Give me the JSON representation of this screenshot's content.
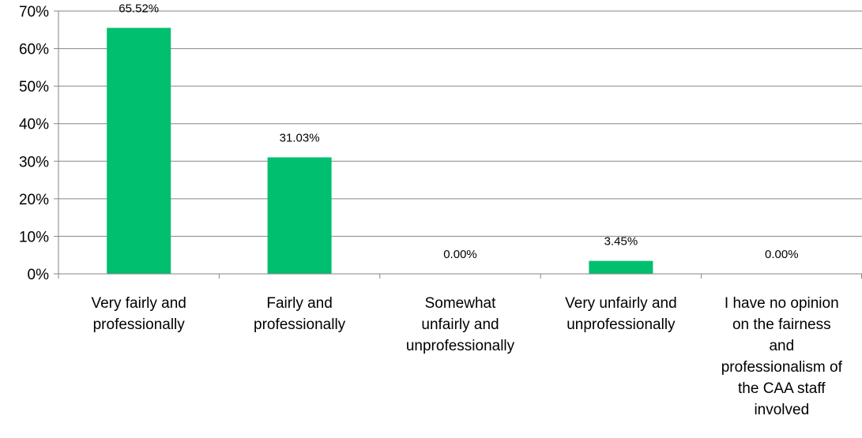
{
  "chart_data": {
    "type": "bar",
    "categories": [
      "Very fairly and professionally",
      "Fairly and professionally",
      "Somewhat unfairly and unprofessionally",
      "Very unfairly and unprofessionally",
      "I have no opinion on the fairness and professionalism of the CAA staff involved"
    ],
    "category_lines": [
      [
        "Very fairly and",
        "professionally"
      ],
      [
        "Fairly and",
        "professionally"
      ],
      [
        "Somewhat",
        "unfairly and",
        "unprofessionally"
      ],
      [
        "Very unfairly and",
        "unprofessionally"
      ],
      [
        "I have no opinion",
        "on the fairness",
        "and",
        "professionalism of",
        "the CAA staff",
        "involved"
      ]
    ],
    "values": [
      65.52,
      31.03,
      0.0,
      3.45,
      0.0
    ],
    "data_labels": [
      "65.52%",
      "31.03%",
      "0.00%",
      "3.45%",
      "0.00%"
    ],
    "yticks": [
      "0%",
      "10%",
      "20%",
      "30%",
      "40%",
      "50%",
      "60%",
      "70%"
    ],
    "ylim": [
      0,
      70
    ],
    "title": "",
    "xlabel": "",
    "ylabel": "",
    "grid": true,
    "legend": "none",
    "bar_color": "#00bf6f",
    "grid_color": "#868686"
  }
}
